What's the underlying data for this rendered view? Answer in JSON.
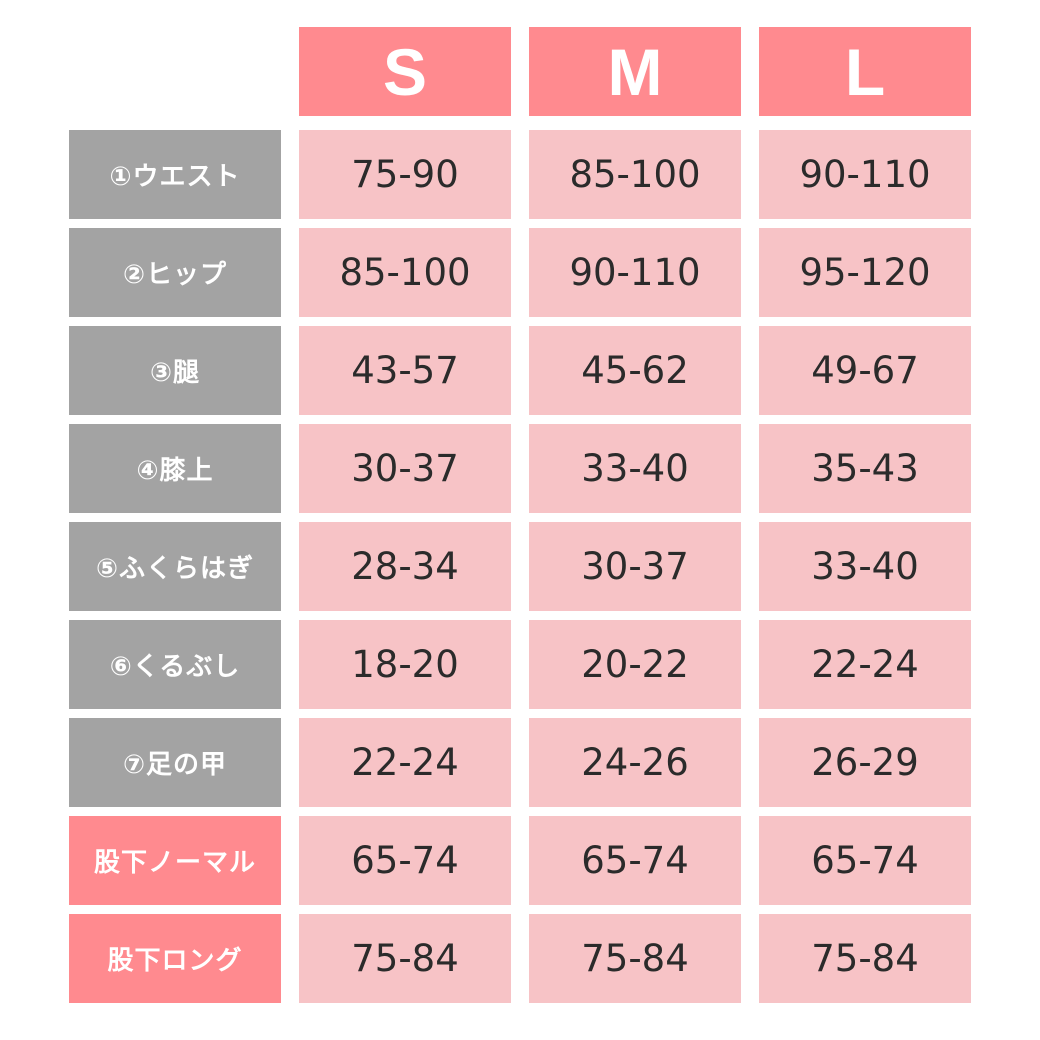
{
  "sizes": [
    "S",
    "M",
    "L"
  ],
  "rows": [
    {
      "label": "①ウエスト",
      "style": "gray",
      "values": [
        "75-90",
        "85-100",
        "90-110"
      ]
    },
    {
      "label": "②ヒップ",
      "style": "gray",
      "values": [
        "85-100",
        "90-110",
        "95-120"
      ]
    },
    {
      "label": "③腿",
      "style": "gray",
      "values": [
        "43-57",
        "45-62",
        "49-67"
      ]
    },
    {
      "label": "④膝上",
      "style": "gray",
      "values": [
        "30-37",
        "33-40",
        "35-43"
      ]
    },
    {
      "label": "⑤ふくらはぎ",
      "style": "gray",
      "values": [
        "28-34",
        "30-37",
        "33-40"
      ]
    },
    {
      "label": "⑥くるぶし",
      "style": "gray",
      "values": [
        "18-20",
        "20-22",
        "22-24"
      ]
    },
    {
      "label": "⑦足の甲",
      "style": "gray",
      "values": [
        "22-24",
        "24-26",
        "26-29"
      ]
    },
    {
      "label": "股下ノーマル",
      "style": "pink",
      "values": [
        "65-74",
        "65-74",
        "65-74"
      ]
    },
    {
      "label": "股下ロング",
      "style": "pink",
      "values": [
        "75-84",
        "75-84",
        "75-84"
      ]
    }
  ],
  "colors": {
    "header_pink": "#ff8a8f",
    "label_gray": "#a3a3a3",
    "label_pink": "#ff8a8f",
    "value_pink": "#f7c3c6"
  }
}
